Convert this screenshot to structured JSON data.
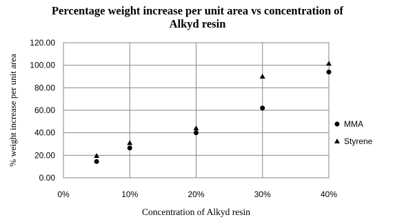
{
  "chart_data": {
    "type": "scatter",
    "title_line1": "Percentage weight increase per unit area vs concentration of",
    "title_line2": "Alkyd resin",
    "xlabel": "Concentration of Alkyd resin",
    "ylabel": "% weight increase per unit area",
    "x_ticks": [
      "0%",
      "10%",
      "20%",
      "30%",
      "40%"
    ],
    "y_ticks": [
      "0.00",
      "20.00",
      "40.00",
      "60.00",
      "80.00",
      "100.00",
      "120.00"
    ],
    "xlim": [
      0,
      40
    ],
    "ylim": [
      0,
      120
    ],
    "grid": true,
    "legend_position": "right",
    "x": [
      5,
      10,
      20,
      30,
      40
    ],
    "series": [
      {
        "name": "MMA",
        "marker": "circle",
        "color": "#000000",
        "values": [
          14.5,
          26.5,
          40.0,
          62.0,
          94.0
        ]
      },
      {
        "name": "Styrene",
        "marker": "triangle",
        "color": "#000000",
        "values": [
          19.5,
          31.0,
          44.0,
          90.0,
          101.5
        ]
      }
    ]
  }
}
